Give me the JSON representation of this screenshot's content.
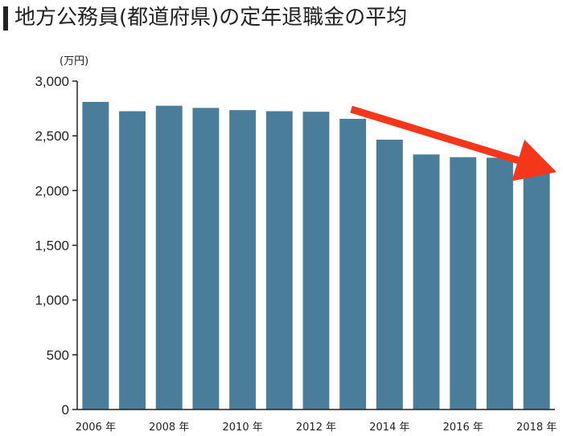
{
  "title": "地方公務員(都道府県)の定年退職金の平均",
  "colors": {
    "bar": "#4a7d99",
    "arrow": "#f4361b",
    "axis": "#222222"
  },
  "chart_data": {
    "type": "bar",
    "unit_label": "(万円)",
    "categories": [
      "2006",
      "2007",
      "2008",
      "2009",
      "2010",
      "2011",
      "2012",
      "2013",
      "2014",
      "2015",
      "2016",
      "2017",
      "2018"
    ],
    "x_tick_labels": [
      {
        "category": "2006",
        "label": "2006 年"
      },
      {
        "category": "2008",
        "label": "2008 年"
      },
      {
        "category": "2010",
        "label": "2010 年"
      },
      {
        "category": "2012",
        "label": "2012 年"
      },
      {
        "category": "2014",
        "label": "2014 年"
      },
      {
        "category": "2016",
        "label": "2016 年"
      },
      {
        "category": "2018",
        "label": "2018 年"
      }
    ],
    "values": [
      2810,
      2725,
      2775,
      2755,
      2735,
      2725,
      2720,
      2655,
      2465,
      2330,
      2305,
      2300,
      2220
    ],
    "ylim": [
      0,
      3000
    ],
    "y_ticks": [
      {
        "value": 0,
        "label": "0"
      },
      {
        "value": 500,
        "label": "500"
      },
      {
        "value": 1000,
        "label": "1,000"
      },
      {
        "value": 1500,
        "label": "1,500"
      },
      {
        "value": 2000,
        "label": "2,000"
      },
      {
        "value": 2500,
        "label": "2,500"
      },
      {
        "value": 3000,
        "label": "3,000"
      }
    ],
    "grid": false,
    "annotation": {
      "type": "trend-arrow",
      "from_category": "2013",
      "to_category": "2018"
    }
  }
}
